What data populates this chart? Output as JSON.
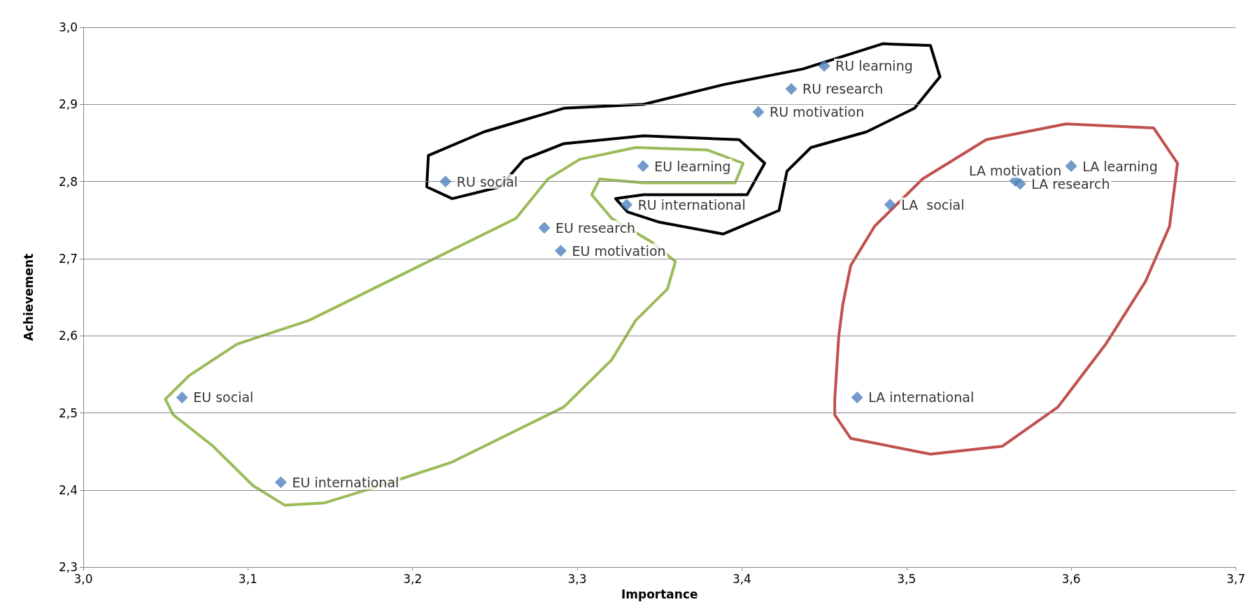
{
  "chart_data": {
    "type": "scatter",
    "xlabel": "Importance",
    "ylabel": "Achievement",
    "x": [
      3.45,
      3.43,
      3.41,
      3.22,
      3.34,
      3.33,
      3.28,
      3.29,
      3.06,
      3.12,
      3.6,
      3.566,
      3.569,
      3.49,
      3.47
    ],
    "values": [
      2.95,
      2.92,
      2.89,
      2.8,
      2.82,
      2.77,
      2.74,
      2.71,
      2.52,
      2.41,
      2.82,
      2.801,
      2.797,
      2.77,
      2.52
    ],
    "color": "#4f81bd",
    "marker": "diamond",
    "grid": "y",
    "xlim": [
      3.0,
      3.7
    ],
    "xticks": [
      {
        "value": 3.0,
        "label": "3,0"
      },
      {
        "value": 3.1,
        "label": "3,1"
      },
      {
        "value": 3.2,
        "label": "3,2"
      },
      {
        "value": 3.3,
        "label": "3,3"
      },
      {
        "value": 3.4,
        "label": "3,4"
      },
      {
        "value": 3.5,
        "label": "3,5"
      },
      {
        "value": 3.6,
        "label": "3,6"
      },
      {
        "value": 3.7,
        "label": "3,7"
      }
    ],
    "ylim": [
      2.3,
      3.0
    ],
    "yticks": [
      {
        "value": 2.3,
        "label": "2,3"
      },
      {
        "value": 2.4,
        "label": "2,4"
      },
      {
        "value": 2.5,
        "label": "2,5"
      },
      {
        "value": 2.6,
        "label": "2,6"
      },
      {
        "value": 2.7,
        "label": "2,7"
      },
      {
        "value": 2.8,
        "label": "2,8"
      },
      {
        "value": 2.9,
        "label": "2,9"
      },
      {
        "value": 3.0,
        "label": "3,0"
      }
    ],
    "annotations": [
      {
        "text": "RU learning",
        "x": 3.45,
        "y": 2.95
      },
      {
        "text": "RU research",
        "x": 3.43,
        "y": 2.92
      },
      {
        "text": "RU motivation",
        "x": 3.41,
        "y": 2.89
      },
      {
        "text": "RU social",
        "x": 3.22,
        "y": 2.8
      },
      {
        "text": "EU learning",
        "x": 3.34,
        "y": 2.82
      },
      {
        "text": "RU international",
        "x": 3.33,
        "y": 2.77
      },
      {
        "text": "EU research",
        "x": 3.28,
        "y": 2.74
      },
      {
        "text": "EU motivation",
        "x": 3.29,
        "y": 2.71
      },
      {
        "text": "EU social",
        "x": 3.06,
        "y": 2.52
      },
      {
        "text": "EU international",
        "x": 3.12,
        "y": 2.41
      },
      {
        "text": "LA learning",
        "x": 3.6,
        "y": 2.82
      },
      {
        "text": "LA motivation",
        "x": 3.566,
        "y": 2.801
      },
      {
        "text": "LA research",
        "x": 3.569,
        "y": 2.797
      },
      {
        "text": "LA  social",
        "x": 3.49,
        "y": 2.77
      },
      {
        "text": "LA international",
        "x": 3.47,
        "y": 2.52
      }
    ]
  }
}
